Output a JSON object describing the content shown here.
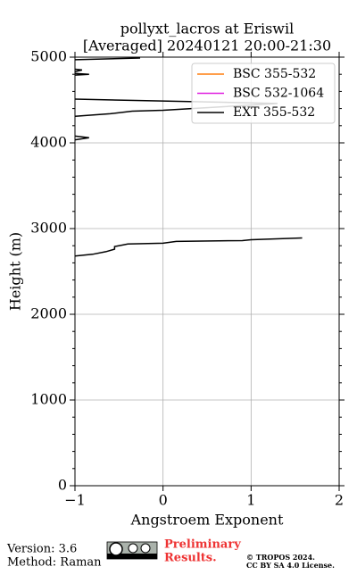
{
  "chart_data": {
    "type": "line",
    "title": "pollyxt_lacros at Eriswil",
    "subtitle": "[Averaged] 20240121 20:00-21:30",
    "x_label": "Angstroem Exponent",
    "y_label": "Height (m)",
    "xlim": [
      -1,
      2
    ],
    "xticks": [
      {
        "value": -1,
        "label": "−1"
      },
      0,
      1,
      2
    ],
    "ylim": [
      0,
      5000
    ],
    "yticks": [
      0,
      1000,
      2000,
      3000,
      4000,
      5000
    ],
    "yminorticks": [
      200,
      400,
      600,
      800,
      1200,
      1400,
      1600,
      1800,
      2200,
      2400,
      2600,
      2800,
      3200,
      3400,
      3600,
      3800,
      4200,
      4400,
      4600,
      4800
    ],
    "grid": true,
    "legend": "upper right",
    "series": [
      {
        "name": "BSC 355-532",
        "color": "#ff7f0e",
        "x": [],
        "y": []
      },
      {
        "name": "BSC 532-1064",
        "color": "#e020e0",
        "x": [],
        "y": []
      },
      {
        "name": "EXT 355-532",
        "color": "#000000",
        "x": [
          -0.26,
          -1.0,
          null,
          -1.0,
          -0.92,
          -1.0,
          null,
          -1.0,
          -0.84,
          -1.0,
          null,
          -1.0,
          1.3,
          0.0,
          -0.35,
          -0.6,
          -1.0,
          null,
          -1.0,
          -0.84,
          -1.0,
          null,
          -1.0,
          -0.8,
          -0.65,
          -0.55,
          -0.55,
          -0.45,
          -0.4,
          0.0,
          0.15,
          0.9,
          1.0,
          1.58
        ],
        "y": [
          4990,
          4970,
          null,
          4860,
          4850,
          4830,
          null,
          4810,
          4800,
          4790,
          null,
          4510,
          4460,
          4380,
          4370,
          4340,
          4310,
          null,
          4080,
          4060,
          4035,
          null,
          2680,
          2700,
          2730,
          2760,
          2790,
          2810,
          2820,
          2830,
          2850,
          2860,
          2870,
          2890
        ]
      }
    ]
  },
  "footer": {
    "version": "Version: 3.6",
    "method": "Method: Raman",
    "notice_line1": "Preliminary",
    "notice_line2": "Results.",
    "copyright": "© TROPOS 2024.",
    "license": "CC BY SA 4.0 License."
  }
}
